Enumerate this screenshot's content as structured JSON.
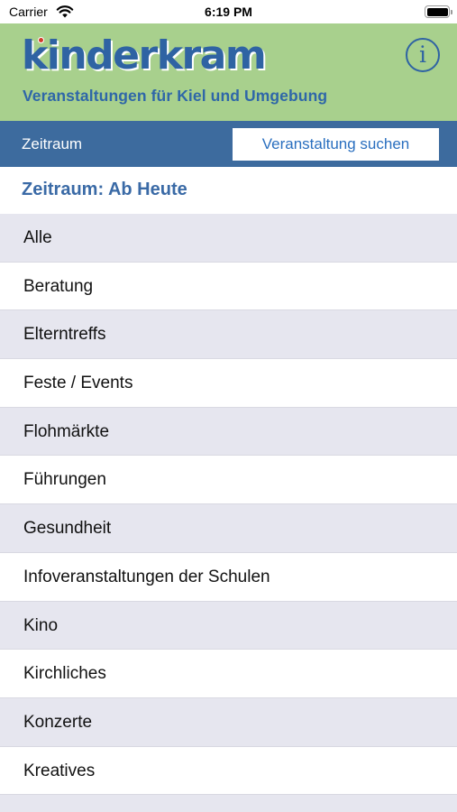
{
  "status_bar": {
    "carrier": "Carrier",
    "time": "6:19 PM",
    "icons": [
      "wifi-icon",
      "battery-icon"
    ]
  },
  "header": {
    "logo_text": "kinderkram",
    "subtitle": "Veranstaltungen für Kiel und Umgebung",
    "info_icon": "info-icon",
    "background_color": "#a8d08d",
    "brand_color": "#2f63a3"
  },
  "toolbar": {
    "zeitraum_label": "Zeitraum",
    "search_button_label": "Veranstaltung suchen",
    "background_color": "#3d6b9e"
  },
  "section": {
    "title": "Zeitraum: Ab Heute"
  },
  "categories": [
    "Alle",
    "Beratung",
    "Elterntreffs",
    "Feste / Events",
    "Flohmärkte",
    "Führungen",
    "Gesundheit",
    "Infoveranstaltungen der Schulen",
    "Kino",
    "Kirchliches",
    "Konzerte",
    "Kreatives"
  ]
}
